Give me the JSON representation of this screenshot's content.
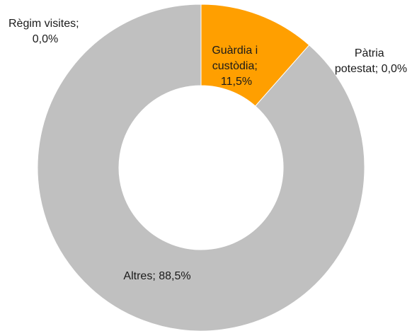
{
  "chart_data": {
    "type": "pie",
    "variant": "donut",
    "slices": [
      {
        "name": "Guàrdia i custòdia",
        "value": 11.5,
        "label_lines": [
          "Guàrdia i",
          "custòdia;",
          "11,5%"
        ],
        "color": "#ff9f00"
      },
      {
        "name": "Pàtria potestat",
        "value": 0.0,
        "label_lines": [
          "Pàtria",
          "potestat; 0,0%"
        ],
        "color": "#c0c0c0"
      },
      {
        "name": "Altres",
        "value": 88.5,
        "label_lines": [
          "Altres; 88,5%"
        ],
        "color": "#c0c0c0"
      },
      {
        "name": "Règim visites",
        "value": 0.0,
        "label_lines": [
          "Règim visites;",
          "0,0%"
        ],
        "color": "#c0c0c0"
      }
    ],
    "legend": "none"
  }
}
